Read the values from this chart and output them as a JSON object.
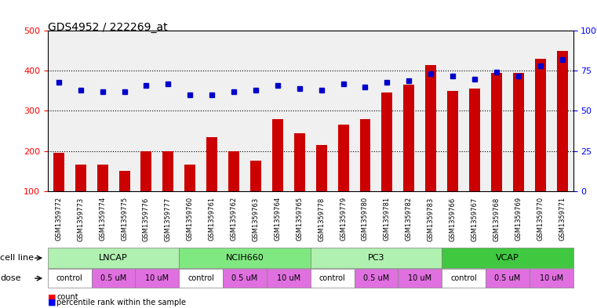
{
  "title": "GDS4952 / 222269_at",
  "gsm_labels": [
    "GSM1359772",
    "GSM1359773",
    "GSM1359774",
    "GSM1359775",
    "GSM1359776",
    "GSM1359777",
    "GSM1359760",
    "GSM1359761",
    "GSM1359762",
    "GSM1359763",
    "GSM1359764",
    "GSM1359765",
    "GSM1359778",
    "GSM1359779",
    "GSM1359780",
    "GSM1359781",
    "GSM1359782",
    "GSM1359783",
    "GSM1359766",
    "GSM1359767",
    "GSM1359768",
    "GSM1359769",
    "GSM1359770",
    "GSM1359771"
  ],
  "bar_values": [
    195,
    165,
    165,
    150,
    200,
    200,
    165,
    235,
    200,
    175,
    280,
    245,
    215,
    265,
    280,
    345,
    365,
    415,
    350,
    355,
    395,
    395,
    430,
    450
  ],
  "percentile_values": [
    68,
    63,
    62,
    62,
    66,
    67,
    60,
    60,
    62,
    63,
    66,
    64,
    63,
    67,
    65,
    68,
    69,
    73,
    72,
    70,
    74,
    72,
    78,
    82
  ],
  "cell_lines": [
    {
      "label": "LNCAP",
      "start": 0,
      "end": 6,
      "color": "#b0f0b0"
    },
    {
      "label": "NCIH660",
      "start": 6,
      "end": 12,
      "color": "#80e880"
    },
    {
      "label": "PC3",
      "start": 12,
      "end": 18,
      "color": "#b0f0b0"
    },
    {
      "label": "VCAP",
      "start": 18,
      "end": 24,
      "color": "#40c840"
    }
  ],
  "dose_groups": [
    {
      "label": "control",
      "start": 0,
      "end": 2,
      "color": "#ffffff"
    },
    {
      "label": "0.5 uM",
      "start": 2,
      "end": 4,
      "color": "#e070e0"
    },
    {
      "label": "10 uM",
      "start": 4,
      "end": 6,
      "color": "#e070e0"
    },
    {
      "label": "control",
      "start": 6,
      "end": 8,
      "color": "#ffffff"
    },
    {
      "label": "0.5 uM",
      "start": 8,
      "end": 10,
      "color": "#e070e0"
    },
    {
      "label": "10 uM",
      "start": 10,
      "end": 12,
      "color": "#e070e0"
    },
    {
      "label": "control",
      "start": 12,
      "end": 14,
      "color": "#ffffff"
    },
    {
      "label": "0.5 uM",
      "start": 14,
      "end": 16,
      "color": "#e070e0"
    },
    {
      "label": "10 uM",
      "start": 16,
      "end": 18,
      "color": "#e070e0"
    },
    {
      "label": "control",
      "start": 18,
      "end": 20,
      "color": "#ffffff"
    },
    {
      "label": "0.5 uM",
      "start": 20,
      "end": 22,
      "color": "#e070e0"
    },
    {
      "label": "10 uM",
      "start": 22,
      "end": 24,
      "color": "#e070e0"
    }
  ],
  "bar_color": "#cc0000",
  "dot_color": "#0000cc",
  "ylim_left": [
    100,
    500
  ],
  "ylim_right": [
    0,
    100
  ],
  "yticks_left": [
    100,
    200,
    300,
    400,
    500
  ],
  "yticks_right": [
    0,
    25,
    50,
    75,
    100
  ],
  "background_color": "#f0f0f0",
  "grid_color": "#000000"
}
